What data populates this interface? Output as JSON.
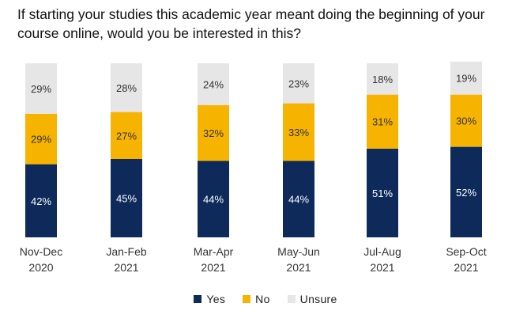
{
  "title_lines": [
    "If starting your studies this academic year meant doing the beginning of your",
    "course online, would you be interested in this?"
  ],
  "colors": {
    "yes": "#0d2a5b",
    "no": "#f6b400",
    "unsure": "#e6e6e6",
    "label_light": "#ffffff",
    "label_dark": "#333333"
  },
  "chart_data": {
    "type": "bar",
    "stacked": true,
    "title": "If starting your studies this academic year meant doing the beginning of your course online, would you be interested in this?",
    "categories": [
      [
        "Nov-Dec",
        "2020"
      ],
      [
        "Jan-Feb",
        "2021"
      ],
      [
        "Mar-Apr",
        "2021"
      ],
      [
        "May-Jun",
        "2021"
      ],
      [
        "Jul-Aug",
        "2021"
      ],
      [
        "Sep-Oct",
        "2021"
      ]
    ],
    "series": [
      {
        "name": "Yes",
        "key": "yes",
        "values": [
          42,
          45,
          44,
          44,
          51,
          52
        ]
      },
      {
        "name": "No",
        "key": "no",
        "values": [
          29,
          27,
          32,
          33,
          31,
          30
        ]
      },
      {
        "name": "Unsure",
        "key": "unsure",
        "values": [
          29,
          28,
          24,
          23,
          18,
          19
        ]
      }
    ],
    "value_suffix": "%",
    "ylim": [
      0,
      100
    ],
    "legend_position": "bottom",
    "grid": false
  }
}
